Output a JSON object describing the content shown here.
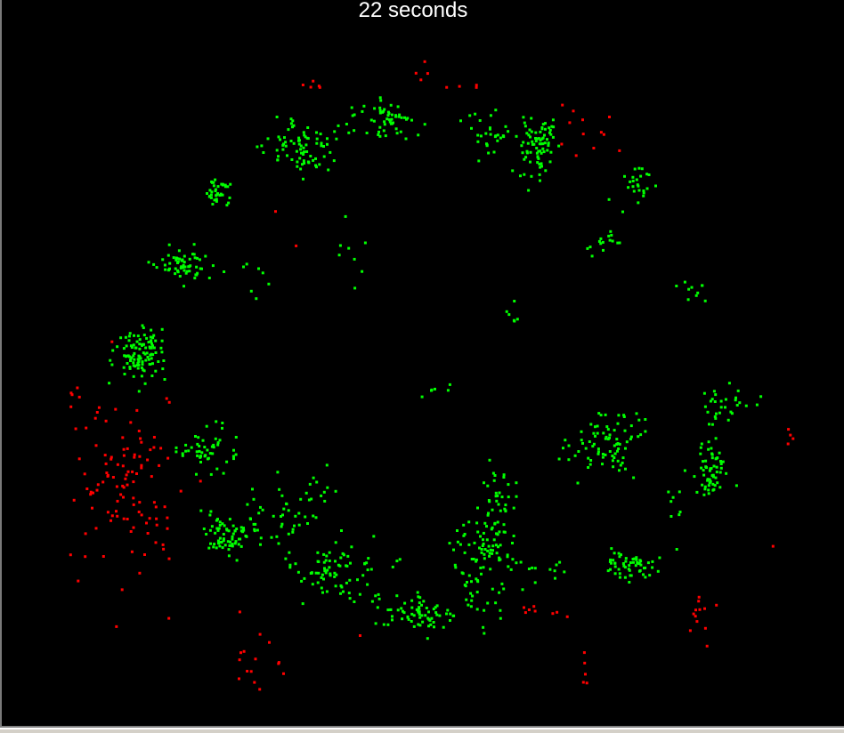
{
  "timer": {
    "label": "22 seconds"
  },
  "colors": {
    "background": "#000000",
    "active_particle": "#00ff00",
    "inactive_particle": "#ff0000",
    "text": "#ffffff"
  }
}
